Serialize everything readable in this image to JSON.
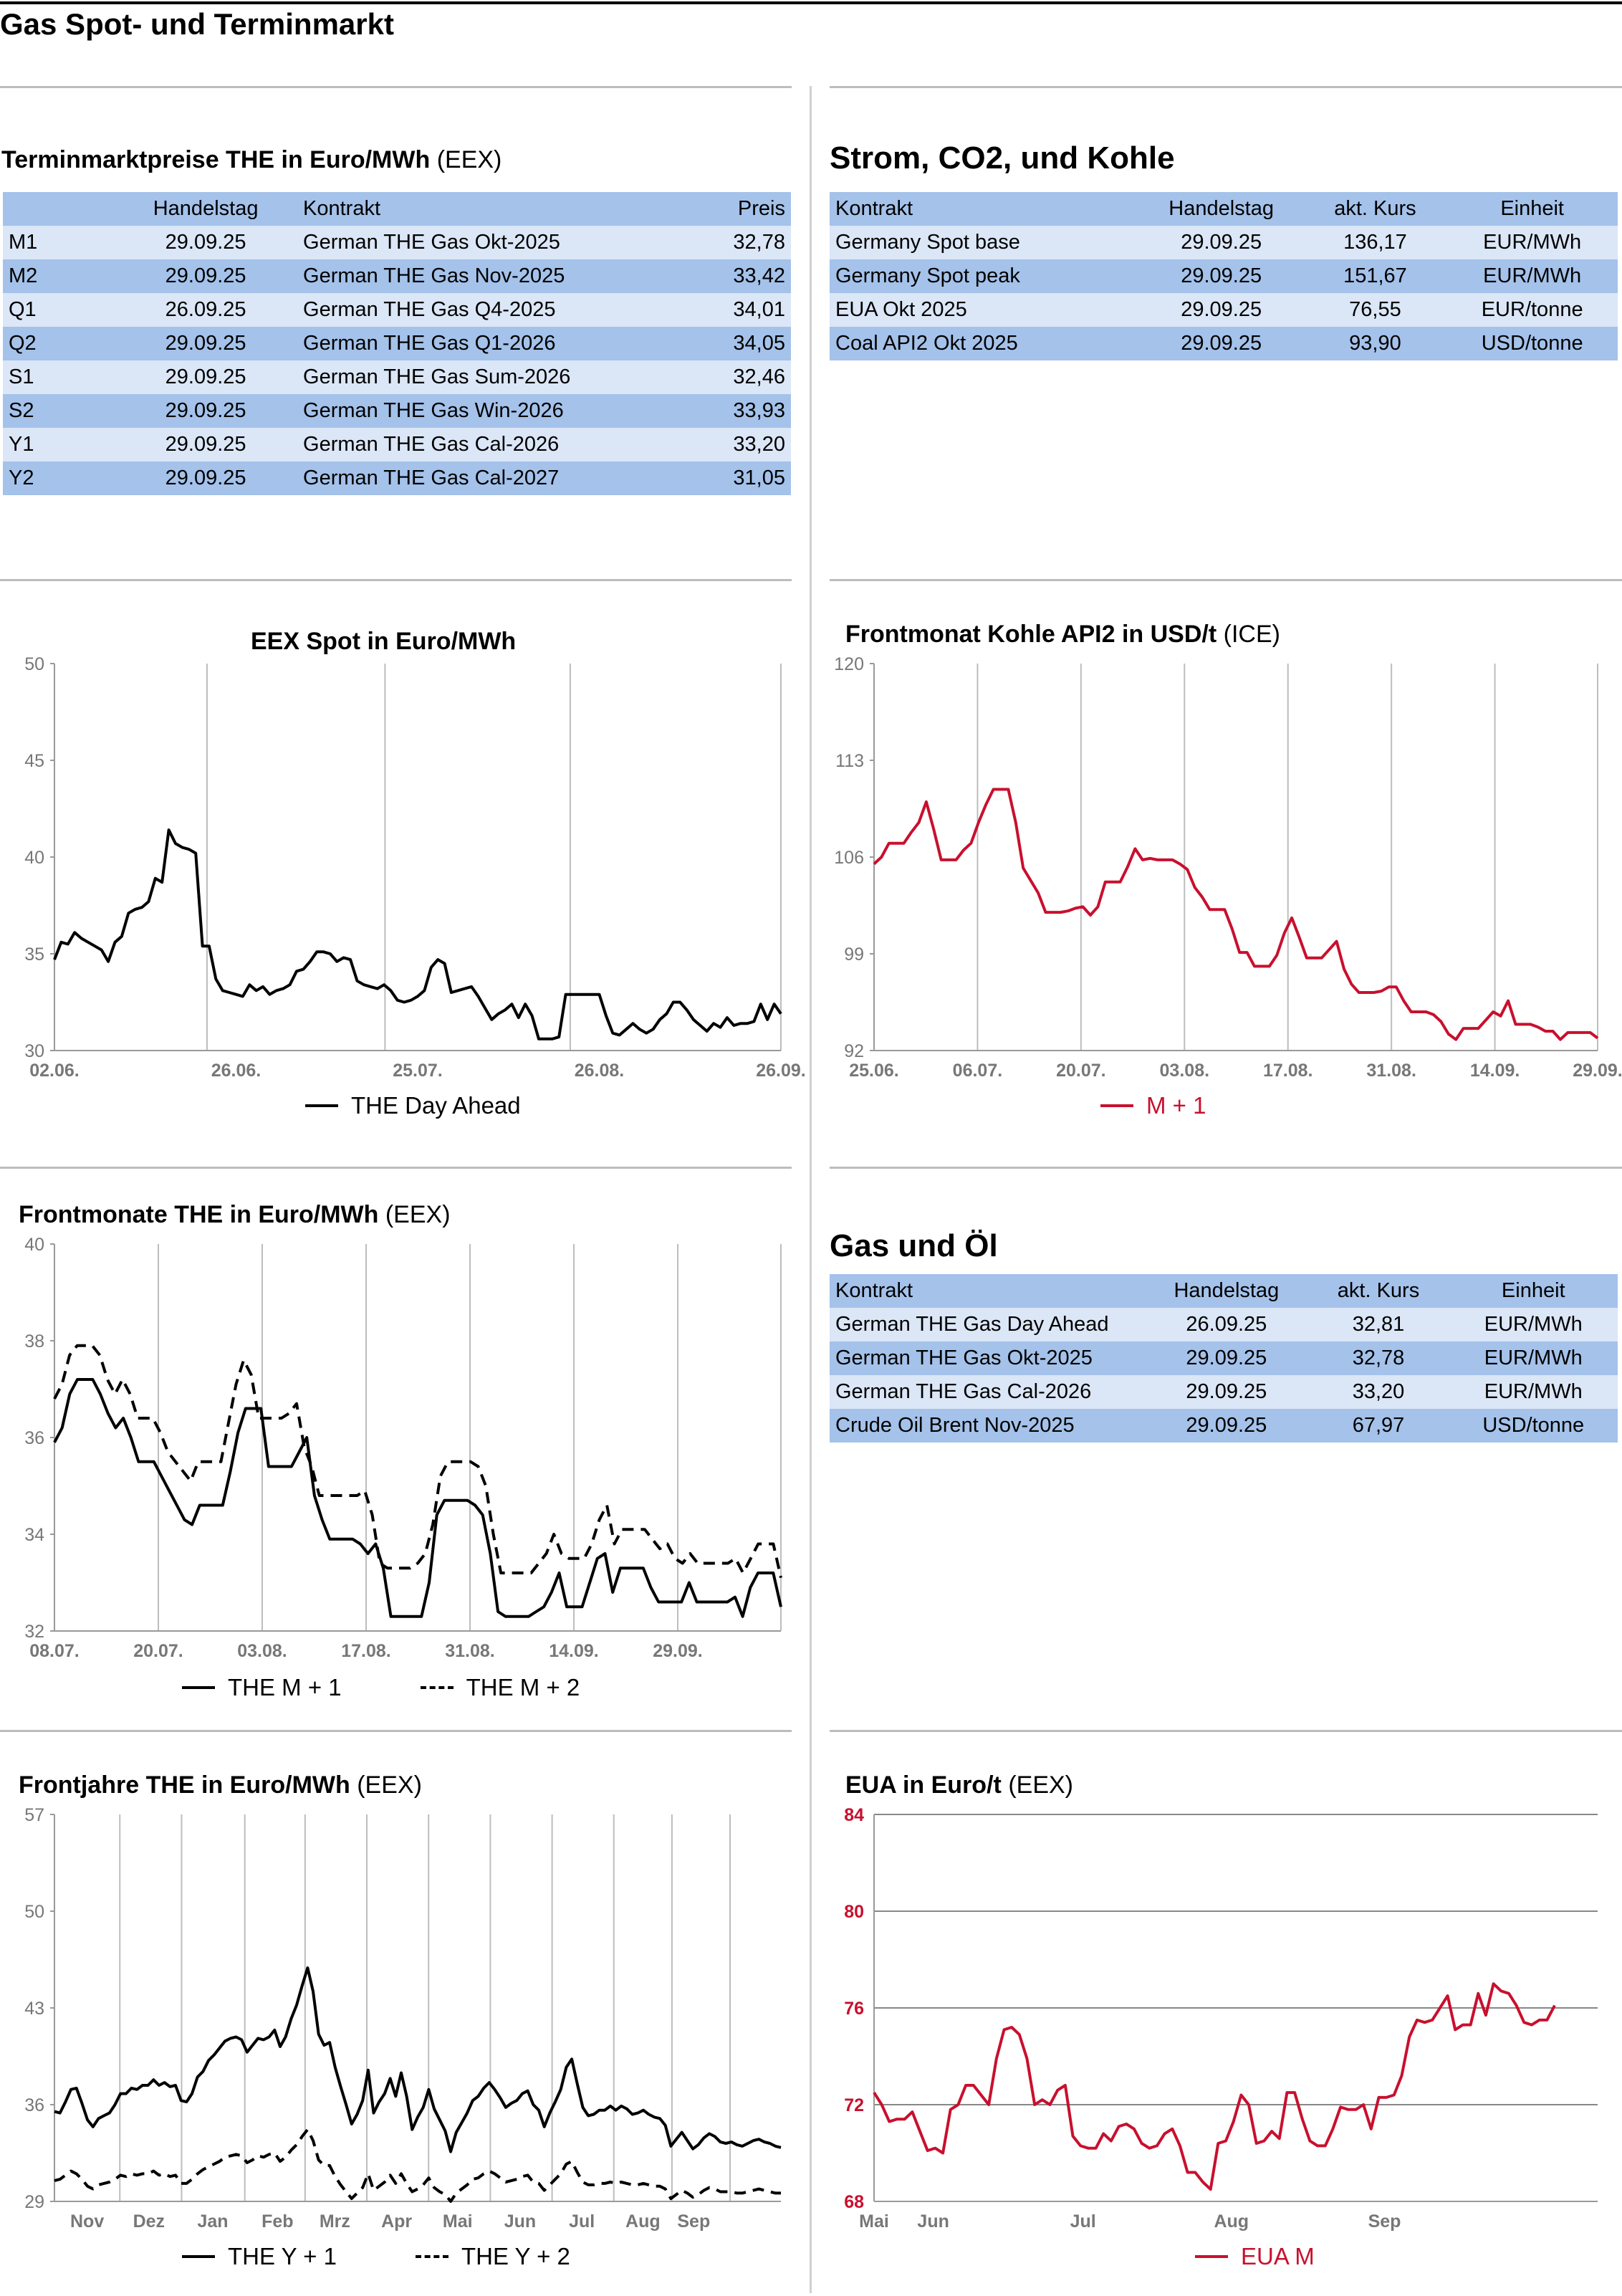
{
  "page_title": "Gas Spot- und Terminmarkt",
  "terminmarkt": {
    "title": "Terminmarktpreise THE in Euro/MWh",
    "title_suffix": "(EEX)",
    "headers": [
      "",
      "Handelstag",
      "Kontrakt",
      "Preis"
    ],
    "rows": [
      [
        "M1",
        "29.09.25",
        "German THE Gas Okt-2025",
        "32,78"
      ],
      [
        "M2",
        "29.09.25",
        "German THE Gas Nov-2025",
        "33,42"
      ],
      [
        "Q1",
        "26.09.25",
        "German THE Gas Q4-2025",
        "34,01"
      ],
      [
        "Q2",
        "29.09.25",
        "German THE Gas Q1-2026",
        "34,05"
      ],
      [
        "S1",
        "29.09.25",
        "German THE Gas Sum-2026",
        "32,46"
      ],
      [
        "S2",
        "29.09.25",
        "German THE Gas Win-2026",
        "33,93"
      ],
      [
        "Y1",
        "29.09.25",
        "German THE Gas Cal-2026",
        "33,20"
      ],
      [
        "Y2",
        "29.09.25",
        "German THE Gas Cal-2027",
        "31,05"
      ]
    ]
  },
  "strom": {
    "title": "Strom, CO2, und Kohle",
    "headers": [
      "Kontrakt",
      "Handelstag",
      "akt. Kurs",
      "Einheit"
    ],
    "rows": [
      [
        "Germany Spot base",
        "29.09.25",
        "136,17",
        "EUR/MWh"
      ],
      [
        "Germany Spot peak",
        "29.09.25",
        "151,67",
        "EUR/MWh"
      ],
      [
        "EUA Okt 2025",
        "29.09.25",
        "76,55",
        "EUR/tonne"
      ],
      [
        "Coal API2 Okt 2025",
        "29.09.25",
        "93,90",
        "USD/tonne"
      ]
    ]
  },
  "gasoel": {
    "title": "Gas und Öl",
    "headers": [
      "Kontrakt",
      "Handelstag",
      "akt. Kurs",
      "Einheit"
    ],
    "rows": [
      [
        "German THE Gas Day Ahead",
        "26.09.25",
        "32,81",
        "EUR/MWh"
      ],
      [
        "German THE Gas Okt-2025",
        "29.09.25",
        "32,78",
        "EUR/MWh"
      ],
      [
        "German THE Gas Cal-2026",
        "29.09.25",
        "33,20",
        "EUR/MWh"
      ],
      [
        "Crude Oil Brent Nov-2025",
        "29.09.25",
        "67,97",
        "USD/tonne"
      ]
    ]
  },
  "chart_data": [
    {
      "id": "spot",
      "type": "line",
      "title": "EEX Spot in Euro/MWh",
      "title_suffix": "",
      "ylim": [
        30,
        50
      ],
      "yticks": [
        "30",
        "35",
        "40",
        "45",
        "50"
      ],
      "xticks": [
        "02.06.",
        "26.06.",
        "25.07.",
        "26.08.",
        "26.09."
      ],
      "grid": "vertical",
      "legend_position": "bottom",
      "series": [
        {
          "name": "THE Day Ahead",
          "color": "#000000",
          "style": "solid",
          "values": [
            34.7,
            35.6,
            35.5,
            36.1,
            35.8,
            35.6,
            35.4,
            35.2,
            34.6,
            35.6,
            35.9,
            37.1,
            37.3,
            37.4,
            37.7,
            38.9,
            38.7,
            41.4,
            40.7,
            40.5,
            40.4,
            40.2,
            35.4,
            35.4,
            33.7,
            33.1,
            33.0,
            32.9,
            32.8,
            33.4,
            33.1,
            33.3,
            32.9,
            33.1,
            33.2,
            33.4,
            34.1,
            34.2,
            34.6,
            35.1,
            35.1,
            35.0,
            34.6,
            34.8,
            34.7,
            33.6,
            33.4,
            33.3,
            33.2,
            33.4,
            33.1,
            32.6,
            32.5,
            32.6,
            32.8,
            33.1,
            34.3,
            34.7,
            34.5,
            33.0,
            33.1,
            33.2,
            33.3,
            32.8,
            32.2,
            31.6,
            31.9,
            32.1,
            32.4,
            31.7,
            32.4,
            31.8,
            30.6,
            30.6,
            30.6,
            30.7,
            32.9,
            32.9,
            32.9,
            32.9,
            32.9,
            32.9,
            31.8,
            30.9,
            30.8,
            31.1,
            31.4,
            31.1,
            30.9,
            31.1,
            31.6,
            31.9,
            32.5,
            32.5,
            32.1,
            31.6,
            31.3,
            31.0,
            31.4,
            31.2,
            31.7,
            31.3,
            31.4,
            31.4,
            31.5,
            32.4,
            31.6,
            32.4,
            31.9
          ]
        }
      ]
    },
    {
      "id": "kohle",
      "type": "line",
      "title": "Frontmonat Kohle API2 in USD/t",
      "title_suffix": "(ICE)",
      "ylim": [
        92,
        120
      ],
      "yticks": [
        "92",
        "99",
        "106",
        "113",
        "120"
      ],
      "xticks": [
        "25.06.",
        "06.07.",
        "20.07.",
        "03.08.",
        "17.08.",
        "31.08.",
        "14.09.",
        "29.09."
      ],
      "grid": "vertical",
      "legend_position": "bottom",
      "series": [
        {
          "name": "M + 1",
          "color": "#c8102e",
          "style": "solid",
          "values": [
            105.5,
            106,
            107,
            107,
            107,
            107.8,
            108.5,
            110,
            108,
            105.8,
            105.8,
            105.8,
            106.5,
            107,
            108.5,
            109.8,
            110.9,
            110.9,
            110.9,
            108.5,
            105.2,
            104.3,
            103.4,
            102,
            102,
            102,
            102.1,
            102.3,
            102.4,
            101.8,
            102.4,
            104.2,
            104.2,
            104.2,
            105.3,
            106.6,
            105.8,
            105.9,
            105.8,
            105.8,
            105.8,
            105.5,
            105.1,
            103.8,
            103.1,
            102.2,
            102.2,
            102.2,
            100.8,
            99.1,
            99.1,
            98.1,
            98.1,
            98.1,
            98.9,
            100.5,
            101.6,
            100.2,
            98.7,
            98.7,
            98.7,
            99.3,
            99.9,
            97.9,
            96.8,
            96.2,
            96.2,
            96.2,
            96.3,
            96.6,
            96.6,
            95.6,
            94.8,
            94.8,
            94.8,
            94.6,
            94.1,
            93.2,
            92.8,
            93.6,
            93.6,
            93.6,
            94.2,
            94.8,
            94.5,
            95.6,
            93.9,
            93.9,
            93.9,
            93.7,
            93.4,
            93.4,
            92.8,
            93.3,
            93.3,
            93.3,
            93.3,
            92.9
          ]
        }
      ]
    },
    {
      "id": "frontmonate",
      "type": "line",
      "title": "Frontmonate THE in Euro/MWh",
      "title_suffix": "(EEX)",
      "ylim": [
        32,
        40
      ],
      "yticks": [
        "32",
        "34",
        "36",
        "38",
        "40"
      ],
      "xticks": [
        "08.07.",
        "20.07.",
        "03.08.",
        "17.08.",
        "31.08.",
        "14.09.",
        "29.09."
      ],
      "grid": "vertical",
      "legend_position": "bottom",
      "series": [
        {
          "name": "THE M + 1",
          "color": "#000000",
          "style": "solid",
          "values": [
            35.9,
            36.2,
            36.9,
            37.2,
            37.2,
            37.2,
            36.9,
            36.5,
            36.2,
            36.4,
            36.0,
            35.5,
            35.5,
            35.5,
            35.2,
            34.9,
            34.6,
            34.3,
            34.2,
            34.6,
            34.6,
            34.6,
            34.6,
            35.3,
            36.1,
            36.6,
            36.6,
            36.6,
            35.4,
            35.4,
            35.4,
            35.4,
            35.7,
            36.0,
            34.8,
            34.3,
            33.9,
            33.9,
            33.9,
            33.9,
            33.8,
            33.6,
            33.8,
            33.3,
            32.3,
            32.3,
            32.3,
            32.3,
            32.3,
            33.0,
            34.4,
            34.7,
            34.7,
            34.7,
            34.7,
            34.6,
            34.4,
            33.6,
            32.4,
            32.3,
            32.3,
            32.3,
            32.3,
            32.4,
            32.5,
            32.8,
            33.2,
            32.5,
            32.5,
            32.5,
            33.0,
            33.5,
            33.6,
            32.8,
            33.3,
            33.3,
            33.3,
            33.3,
            32.9,
            32.6,
            32.6,
            32.6,
            32.6,
            33.0,
            32.6,
            32.6,
            32.6,
            32.6,
            32.6,
            32.7,
            32.3,
            32.9,
            33.2,
            33.2,
            33.2,
            32.5
          ]
        },
        {
          "name": "THE M + 2",
          "color": "#000000",
          "style": "dashed",
          "values": [
            36.8,
            37.1,
            37.7,
            37.9,
            37.9,
            37.9,
            37.7,
            37.2,
            36.9,
            37.2,
            36.9,
            36.4,
            36.4,
            36.4,
            36.1,
            35.7,
            35.5,
            35.3,
            35.1,
            35.5,
            35.5,
            35.5,
            35.5,
            36.3,
            37.1,
            37.6,
            37.3,
            36.4,
            36.4,
            36.4,
            36.4,
            36.5,
            36.7,
            35.8,
            35.4,
            34.8,
            34.8,
            34.8,
            34.8,
            34.8,
            34.8,
            34.9,
            34.4,
            33.4,
            33.3,
            33.3,
            33.3,
            33.3,
            33.4,
            33.6,
            34.2,
            35.2,
            35.5,
            35.5,
            35.5,
            35.5,
            35.4,
            35.0,
            34.0,
            33.2,
            33.2,
            33.2,
            33.2,
            33.2,
            33.4,
            33.6,
            34.0,
            33.6,
            33.5,
            33.5,
            33.5,
            33.8,
            34.3,
            34.6,
            33.8,
            34.1,
            34.1,
            34.1,
            34.1,
            33.9,
            33.7,
            33.8,
            33.5,
            33.4,
            33.6,
            33.4,
            33.4,
            33.4,
            33.4,
            33.4,
            33.5,
            33.2,
            33.5,
            33.8,
            33.8,
            33.8,
            33.1
          ]
        }
      ]
    },
    {
      "id": "frontjahre",
      "type": "line",
      "title": "Frontjahre THE in Euro/MWh",
      "title_suffix": "(EEX)",
      "ylim": [
        29,
        57
      ],
      "yticks": [
        "29",
        "36",
        "43",
        "50",
        "57"
      ],
      "xticks": [
        "Nov",
        "Dez",
        "Jan",
        "Feb",
        "Mrz",
        "Apr",
        "Mai",
        "Jun",
        "Jul",
        "Aug",
        "Sep"
      ],
      "grid": "vertical",
      "legend_position": "bottom",
      "series": [
        {
          "name": "THE Y + 1",
          "color": "#000000",
          "style": "solid",
          "values": [
            35.5,
            35.4,
            36.2,
            37.1,
            37.2,
            36.1,
            34.9,
            34.4,
            35.0,
            35.2,
            35.4,
            36.0,
            36.8,
            36.8,
            37.2,
            37.1,
            37.4,
            37.4,
            37.8,
            37.4,
            37.6,
            37.3,
            37.4,
            36.3,
            36.2,
            36.8,
            38.0,
            38.4,
            39.2,
            39.6,
            40.1,
            40.6,
            40.8,
            40.9,
            40.7,
            39.8,
            40.3,
            40.8,
            40.7,
            40.9,
            41.4,
            40.2,
            40.9,
            42.2,
            43.2,
            44.6,
            45.9,
            44.2,
            41.1,
            40.3,
            40.5,
            38.7,
            37.3,
            36.0,
            34.6,
            35.3,
            36.3,
            38.5,
            35.4,
            36.2,
            36.8,
            37.9,
            36.6,
            38.3,
            36.6,
            34.2,
            35.1,
            35.8,
            37.1,
            35.7,
            34.9,
            34.1,
            32.6,
            34.0,
            34.7,
            35.4,
            36.3,
            36.6,
            37.2,
            37.6,
            37.1,
            36.5,
            35.8,
            36.1,
            36.3,
            36.8,
            37.0,
            36.0,
            35.6,
            34.4,
            35.4,
            36.2,
            37.1,
            38.7,
            39.3,
            37.5,
            35.8,
            35.2,
            35.3,
            35.6,
            35.6,
            35.9,
            35.6,
            35.9,
            35.7,
            35.3,
            35.4,
            35.6,
            35.3,
            35.1,
            35.0,
            34.5,
            33.0,
            33.5,
            34.0,
            33.4,
            32.8,
            33.1,
            33.6,
            33.9,
            33.7,
            33.3,
            33.2,
            33.3,
            33.1,
            33.0,
            33.2,
            33.4,
            33.5,
            33.3,
            33.2,
            33.0,
            32.9
          ]
        },
        {
          "name": "THE Y + 2",
          "color": "#000000",
          "style": "dashed",
          "values": [
            30.5,
            30.6,
            30.9,
            31.2,
            31.0,
            30.6,
            30.1,
            29.9,
            30.2,
            30.3,
            30.4,
            30.6,
            30.9,
            30.8,
            31.0,
            30.9,
            31.0,
            31.0,
            31.2,
            30.9,
            31.0,
            30.8,
            30.9,
            30.3,
            30.3,
            30.6,
            31.0,
            31.3,
            31.5,
            31.7,
            31.9,
            32.2,
            32.3,
            32.4,
            32.3,
            31.8,
            32.0,
            32.3,
            32.2,
            32.4,
            32.5,
            31.9,
            32.2,
            32.7,
            33.1,
            33.7,
            34.2,
            33.4,
            32.0,
            31.6,
            31.6,
            30.8,
            30.2,
            29.7,
            29.2,
            29.6,
            30.0,
            31.0,
            29.8,
            30.1,
            30.4,
            30.9,
            30.3,
            31.0,
            30.3,
            29.7,
            29.9,
            30.2,
            30.7,
            30.0,
            29.7,
            29.5,
            29.0,
            29.6,
            29.9,
            30.2,
            30.6,
            30.7,
            31.0,
            31.2,
            31.0,
            30.7,
            30.4,
            30.5,
            30.6,
            30.8,
            30.9,
            30.4,
            30.3,
            29.8,
            30.2,
            30.6,
            31.0,
            31.7,
            31.9,
            31.1,
            30.4,
            30.2,
            30.2,
            30.3,
            30.3,
            30.4,
            30.3,
            30.4,
            30.3,
            30.2,
            30.2,
            30.3,
            30.2,
            30.1,
            30.1,
            29.9,
            29.2,
            29.5,
            29.8,
            29.6,
            29.3,
            29.5,
            29.8,
            30.0,
            29.9,
            29.7,
            29.7,
            29.7,
            29.6,
            29.6,
            29.7,
            29.8,
            29.9,
            29.8,
            29.7,
            29.6,
            29.6
          ]
        }
      ]
    },
    {
      "id": "eua",
      "type": "line",
      "title": "EUA in Euro/t",
      "title_suffix": "(EEX)",
      "ylim": [
        68,
        84
      ],
      "yticks": [
        "68",
        "72",
        "76",
        "80",
        "84"
      ],
      "xticks": [
        "Mai",
        "Jun",
        "Jul",
        "Aug",
        "Sep"
      ],
      "grid": "horizontal",
      "legend_position": "bottom",
      "series": [
        {
          "name": "EUA M",
          "color": "#c8102e",
          "style": "solid",
          "values": [
            72.5,
            72.0,
            71.3,
            71.4,
            71.4,
            71.7,
            70.9,
            70.1,
            70.2,
            70.0,
            71.8,
            72.0,
            72.8,
            72.8,
            72.4,
            72.0,
            73.9,
            75.1,
            75.2,
            74.9,
            73.9,
            72.0,
            72.2,
            72.0,
            72.6,
            72.8,
            70.7,
            70.3,
            70.2,
            70.2,
            70.8,
            70.5,
            71.1,
            71.2,
            71.0,
            70.4,
            70.2,
            70.3,
            70.8,
            71.0,
            70.3,
            69.2,
            69.2,
            68.8,
            68.5,
            70.4,
            70.5,
            71.3,
            72.4,
            72.0,
            70.4,
            70.5,
            70.9,
            70.6,
            72.5,
            72.5,
            71.4,
            70.5,
            70.3,
            70.3,
            71.0,
            71.9,
            71.8,
            71.8,
            72.0,
            71.0,
            72.3,
            72.3,
            72.4,
            73.2,
            74.8,
            75.5,
            75.4,
            75.5,
            76.0,
            76.5,
            75.1,
            75.3,
            75.3,
            76.6,
            75.7,
            77.0,
            76.7,
            76.6,
            76.1,
            75.4,
            75.3,
            75.5,
            75.5,
            76.1
          ]
        }
      ]
    }
  ]
}
